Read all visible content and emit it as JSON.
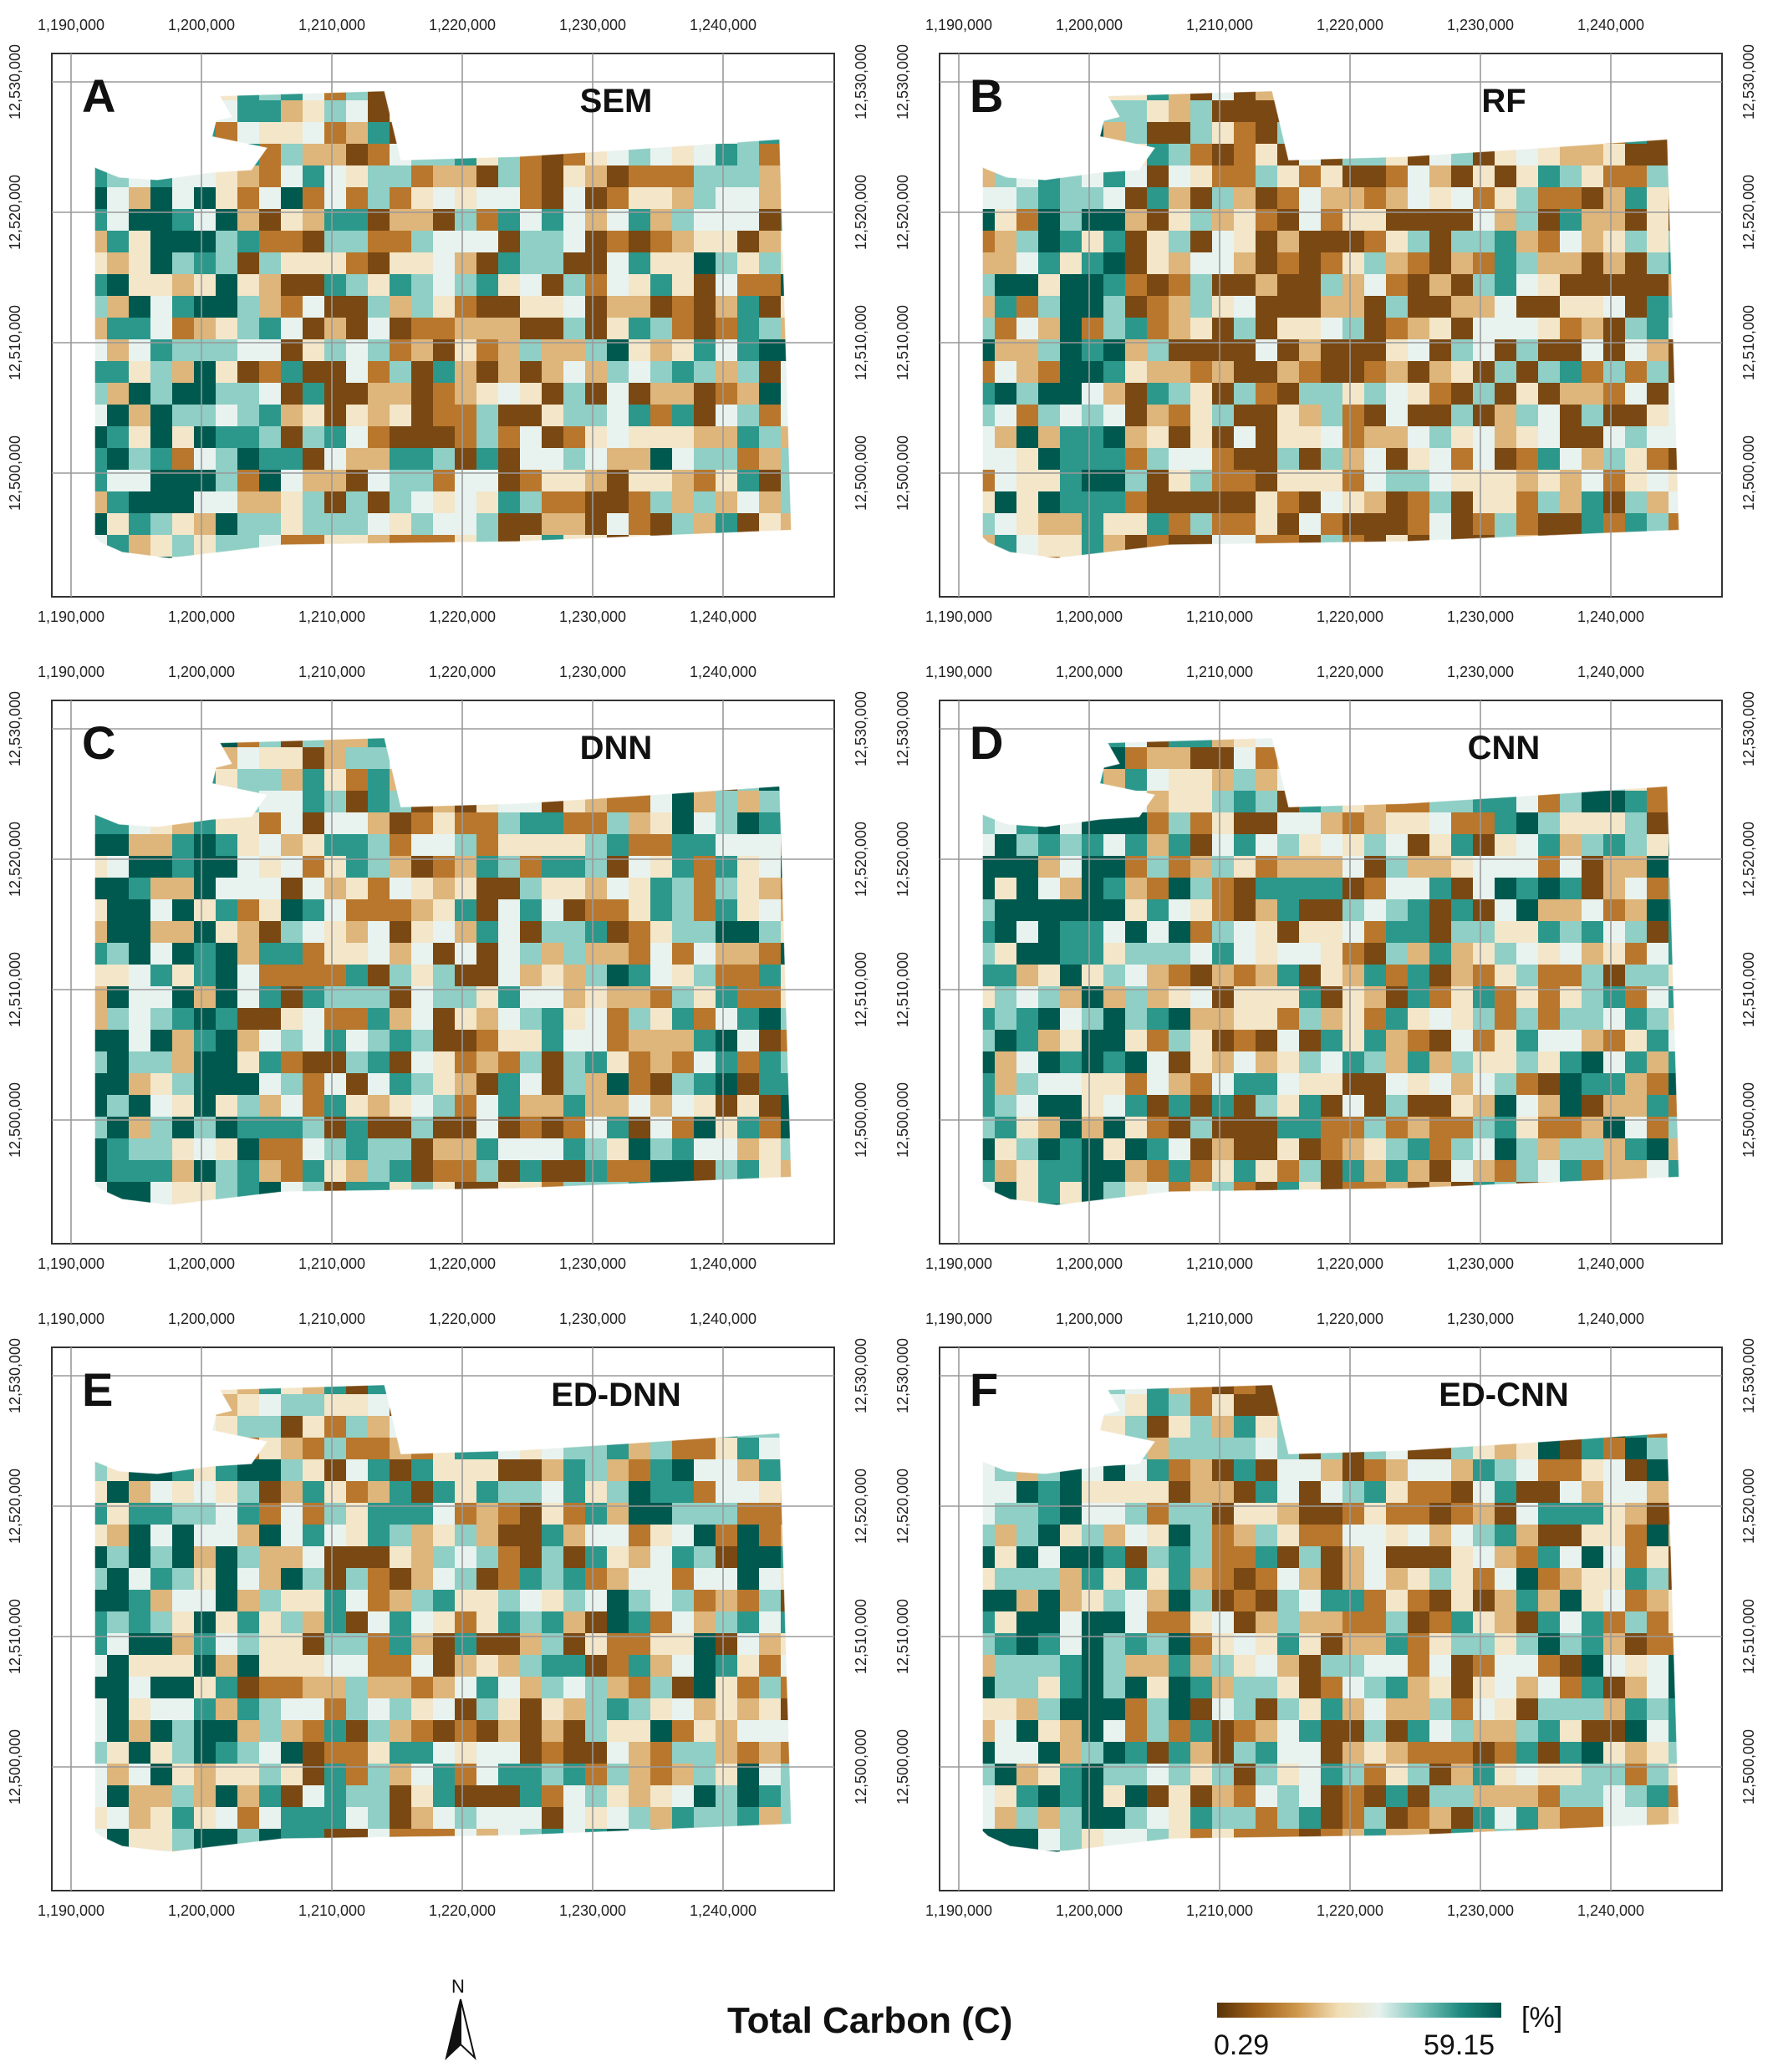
{
  "figure": {
    "x_tick_labels": [
      "1,190,000",
      "1,200,000",
      "1,210,000",
      "1,220,000",
      "1,230,000",
      "1,240,000"
    ],
    "y_tick_labels": [
      "12,530,000",
      "12,520,000",
      "12,510,000",
      "12,500,000"
    ],
    "panels": [
      {
        "letter": "A",
        "model": "SEM"
      },
      {
        "letter": "B",
        "model": "RF"
      },
      {
        "letter": "C",
        "model": "DNN"
      },
      {
        "letter": "D",
        "model": "CNN"
      },
      {
        "letter": "E",
        "model": "ED-DNN"
      },
      {
        "letter": "F",
        "model": "ED-CNN"
      }
    ]
  },
  "legend": {
    "title": "Total Carbon (C)",
    "min_label": "0.29",
    "max_label": "59.15",
    "unit": "[%]",
    "ramp_colors": [
      "#5a3306",
      "#a0621a",
      "#cf9a4e",
      "#f2dfb6",
      "#e6f1ee",
      "#7cc5bb",
      "#1f8a80",
      "#00574f"
    ]
  },
  "north_arrow": {
    "label": "N"
  },
  "colors": {
    "brown_dark": "#7a4812",
    "brown": "#b8772d",
    "tan": "#deb57a",
    "cream": "#f3e6c9",
    "pale": "#e8f3f0",
    "teal_light": "#8fcfc5",
    "teal": "#2c978b",
    "teal_dark": "#00594f"
  }
}
